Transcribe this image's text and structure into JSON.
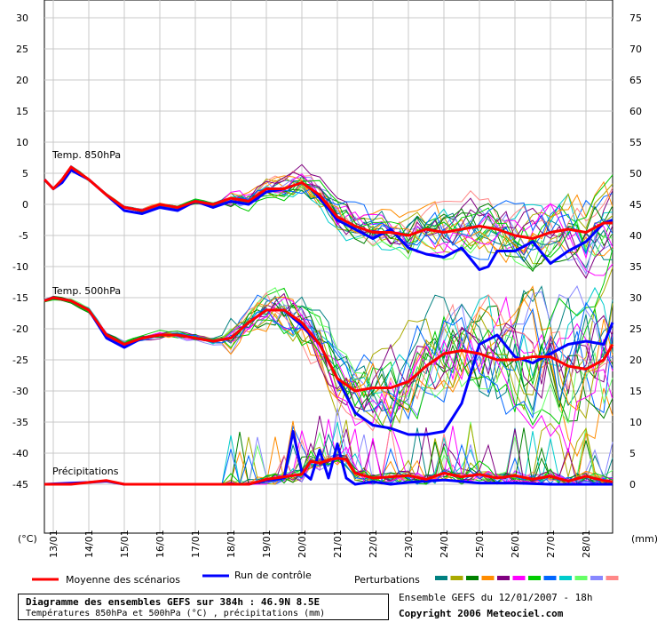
{
  "chart_data": {
    "type": "line",
    "title": "Diagramme des ensembles GEFS sur 384h : 46.9N 8.5E",
    "subtitle": "Températures 850hPa et 500hPa (°C) , précipitations (mm)",
    "run_info": "Ensemble GEFS du 12/01/2007 - 18h",
    "copyright": "Copyright 2006 Meteociel.com",
    "left_axis_unit": "(°C)",
    "right_axis_unit": "(mm)",
    "left_ticks": [
      30,
      25,
      20,
      15,
      10,
      5,
      0,
      -5,
      -10,
      -15,
      -20,
      -25,
      -30,
      -35,
      -40,
      -45
    ],
    "right_ticks": [
      75,
      70,
      65,
      60,
      55,
      50,
      45,
      40,
      35,
      30,
      25,
      20,
      15,
      10,
      5,
      0
    ],
    "ylim_left": [
      -48,
      32
    ],
    "x_ticks": [
      "13/01",
      "14/01",
      "15/01",
      "16/01",
      "17/01",
      "18/01",
      "19/01",
      "20/01",
      "21/01",
      "22/01",
      "23/01",
      "24/01",
      "25/01",
      "26/01",
      "27/01",
      "28/01"
    ],
    "x_range_days": [
      12.75,
      28.75
    ],
    "section_labels": [
      "Temp. 850hPa",
      "Temp. 500hPa",
      "Précipitations"
    ],
    "legend": {
      "mean_label": "Moyenne des scénarios",
      "control_label": "Run de contrôle",
      "perturbations_label": "Perturbations",
      "mean_color": "#ff0000",
      "control_color": "#0000ff",
      "perturbation_colors": [
        "#008080",
        "#aaaa00",
        "#008000",
        "#ff8c00",
        "#800080",
        "#ff00ff",
        "#00cc00",
        "#0066ff",
        "#00cccc",
        "#66ff66",
        "#8888ff",
        "#ff8888"
      ]
    },
    "grid": true,
    "series": [
      {
        "key": "t850_mean",
        "x": [
          12.75,
          13.0,
          13.25,
          13.5,
          14.0,
          14.5,
          15.0,
          15.5,
          16.0,
          16.5,
          17.0,
          17.5,
          18.0,
          18.5,
          19.0,
          19.5,
          20.0,
          20.5,
          21.0,
          21.5,
          22.0,
          22.5,
          23.0,
          23.5,
          24.0,
          24.5,
          25.0,
          25.5,
          26.0,
          26.5,
          27.0,
          27.5,
          28.0,
          28.5,
          28.75
        ],
        "y": [
          4,
          2.5,
          4,
          6,
          4,
          1.5,
          -0.5,
          -1,
          0,
          -0.5,
          0.5,
          0,
          1,
          0.5,
          2.5,
          2.5,
          3.5,
          1.5,
          -2,
          -3.5,
          -4.5,
          -4.5,
          -5,
          -4,
          -4.5,
          -4,
          -3.5,
          -4,
          -5,
          -5.5,
          -4.5,
          -4,
          -4.5,
          -3,
          -3
        ]
      },
      {
        "key": "t850_control",
        "x": [
          12.75,
          13.0,
          13.25,
          13.5,
          14.0,
          14.5,
          15.0,
          15.5,
          16.0,
          16.5,
          17.0,
          17.5,
          18.0,
          18.5,
          19.0,
          19.5,
          20.0,
          20.25,
          20.5,
          21.0,
          21.5,
          22.0,
          22.5,
          23.0,
          23.5,
          24.0,
          24.5,
          25.0,
          25.25,
          25.5,
          26.0,
          26.5,
          27.0,
          27.5,
          28.0,
          28.5,
          28.75
        ],
        "y": [
          4,
          2.5,
          3.5,
          5.5,
          4,
          1.5,
          -1,
          -1.5,
          -0.5,
          -1,
          0.5,
          -0.5,
          0.5,
          0,
          2,
          2.5,
          3.5,
          2.5,
          1,
          -2.5,
          -4,
          -5.5,
          -4,
          -7,
          -8,
          -8.5,
          -7,
          -10.5,
          -10,
          -7.5,
          -7.5,
          -6,
          -9.5,
          -7.5,
          -6,
          -3,
          -2.5
        ]
      },
      {
        "key": "t500_mean",
        "x": [
          12.75,
          13.0,
          13.5,
          14.0,
          14.5,
          15.0,
          15.5,
          16.0,
          16.5,
          17.0,
          17.5,
          18.0,
          18.5,
          19.0,
          19.5,
          20.0,
          20.5,
          21.0,
          21.5,
          22.0,
          22.5,
          23.0,
          23.5,
          24.0,
          24.5,
          25.0,
          25.5,
          26.0,
          26.5,
          27.0,
          27.5,
          28.0,
          28.5,
          28.75
        ],
        "y": [
          -15.5,
          -15,
          -15.5,
          -17,
          -21,
          -22.5,
          -21.5,
          -21,
          -21,
          -21.5,
          -22,
          -21.5,
          -19,
          -17,
          -17,
          -19,
          -22.5,
          -28,
          -30,
          -29.5,
          -29.5,
          -28.5,
          -26,
          -24,
          -23.5,
          -24,
          -25,
          -25,
          -24.5,
          -24.5,
          -26,
          -26.5,
          -25,
          -22.5
        ]
      },
      {
        "key": "t500_control",
        "x": [
          12.75,
          13.0,
          13.5,
          14.0,
          14.5,
          15.0,
          15.5,
          16.0,
          16.5,
          17.0,
          17.5,
          18.0,
          18.5,
          19.0,
          19.5,
          20.0,
          20.5,
          21.0,
          21.5,
          22.0,
          22.5,
          23.0,
          23.5,
          24.0,
          24.5,
          25.0,
          25.5,
          26.0,
          26.5,
          27.0,
          27.5,
          28.0,
          28.5,
          28.75
        ],
        "y": [
          -15.5,
          -15,
          -15.5,
          -17,
          -21.5,
          -23,
          -21.5,
          -21,
          -21,
          -21.5,
          -22,
          -21.5,
          -19,
          -17,
          -17,
          -19.5,
          -22.5,
          -28,
          -33.5,
          -35.5,
          -36,
          -37,
          -37,
          -36.5,
          -32,
          -22.5,
          -21,
          -24.5,
          -25.5,
          -24,
          -22.5,
          -22,
          -22.5,
          -19
        ]
      },
      {
        "key": "precip_mean",
        "x": [
          12.75,
          13.5,
          14.0,
          14.5,
          15.0,
          16.0,
          17.0,
          18.0,
          18.5,
          19.0,
          19.5,
          20.0,
          20.25,
          20.5,
          20.75,
          21.0,
          21.25,
          21.5,
          22.0,
          22.5,
          23.0,
          23.5,
          24.0,
          24.5,
          25.0,
          25.5,
          26.0,
          26.5,
          27.0,
          27.5,
          28.0,
          28.5,
          28.75
        ],
        "y": [
          0,
          0,
          0.3,
          0.6,
          0,
          0,
          0,
          0,
          0,
          0.8,
          1.2,
          1.6,
          3.7,
          3.4,
          3.9,
          4.2,
          4.0,
          1.8,
          1.0,
          1.2,
          1.4,
          0.8,
          1.8,
          1.2,
          1.6,
          1.0,
          1.4,
          0.8,
          1.3,
          0.5,
          1.3,
          0.6,
          0.4
        ]
      },
      {
        "key": "precip_control",
        "x": [
          12.75,
          14.0,
          14.5,
          15.0,
          16.0,
          17.0,
          18.0,
          18.5,
          19.0,
          19.5,
          19.75,
          20.0,
          20.25,
          20.5,
          20.75,
          21.0,
          21.25,
          21.5,
          22.0,
          22.5,
          23.0,
          24.0,
          25.0,
          26.0,
          27.0,
          28.0,
          28.75
        ],
        "y": [
          0,
          0.3,
          0.5,
          0,
          0,
          0,
          0,
          0,
          0.6,
          1.0,
          8.5,
          2.0,
          0.8,
          5.5,
          1.0,
          6.5,
          1.0,
          0,
          0.4,
          0,
          0.3,
          0.7,
          0.2,
          0.2,
          0,
          0,
          0
        ]
      }
    ]
  }
}
